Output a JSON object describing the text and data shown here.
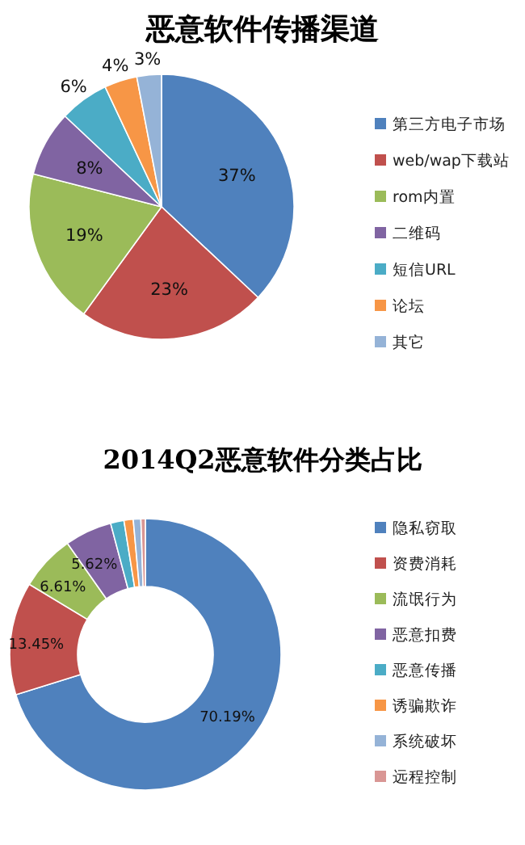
{
  "chart_data": [
    {
      "type": "pie",
      "title": "恶意软件传播渠道",
      "categories": [
        "第三方电子市场",
        "web/wap下载站",
        "rom内置",
        "二维码",
        "短信URL",
        "论坛",
        "其它"
      ],
      "values": [
        37,
        23,
        19,
        8,
        6,
        4,
        3
      ],
      "value_labels": [
        "37%",
        "23%",
        "19%",
        "8%",
        "6%",
        "4%",
        "3%"
      ],
      "colors": [
        "#4f81bd",
        "#c0504d",
        "#9bbb59",
        "#8064a2",
        "#4bacc6",
        "#f79646",
        "#95b3d7"
      ],
      "legend": "right"
    },
    {
      "type": "donut",
      "title": "2014Q2恶意软件分类占比",
      "categories": [
        "隐私窃取",
        "资费消耗",
        "流氓行为",
        "恶意扣费",
        "恶意传播",
        "诱骗欺诈",
        "系统破坏",
        "远程控制"
      ],
      "values": [
        70.19,
        13.45,
        6.61,
        5.62,
        1.6,
        1.1,
        0.9,
        0.53
      ],
      "value_labels": [
        "70.19%",
        "13.45%",
        "6.61%",
        "5.62%",
        null,
        null,
        null,
        null
      ],
      "colors": [
        "#4f81bd",
        "#c0504d",
        "#9bbb59",
        "#8064a2",
        "#4bacc6",
        "#f79646",
        "#95b3d7",
        "#d99694"
      ],
      "legend": "right"
    }
  ]
}
